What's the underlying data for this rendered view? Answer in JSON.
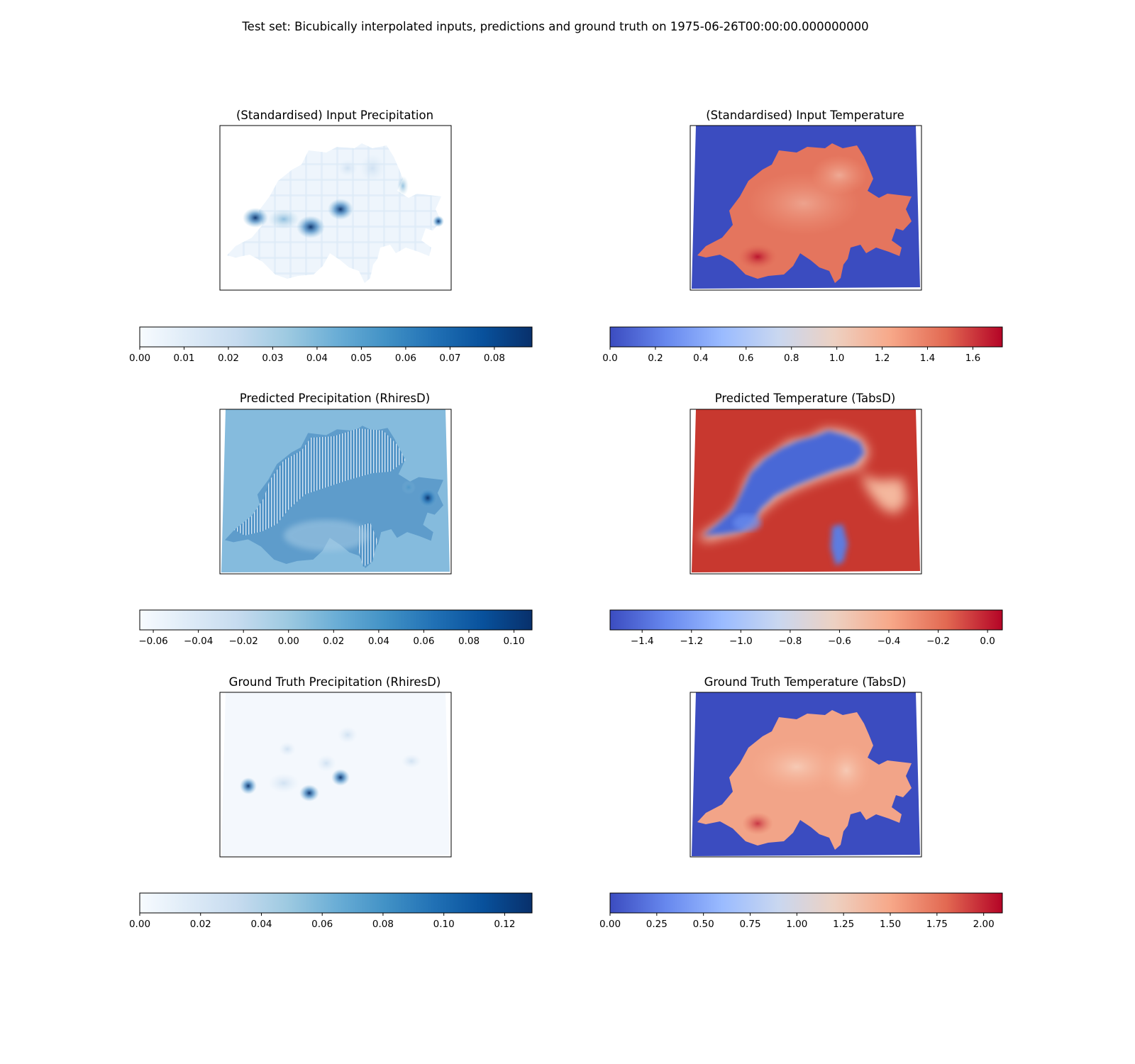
{
  "figure": {
    "suptitle": "Test set: Bicubically interpolated inputs, predictions and ground truth on 1975-06-26T00:00:00.000000000"
  },
  "colors": {
    "ocean_blue": "#3b4cc0",
    "precip_bg": "#f4f8fd",
    "Blues": [
      "#f7fbff",
      "#deebf7",
      "#c6dbef",
      "#9ecae1",
      "#6baed6",
      "#4292c6",
      "#2171b5",
      "#08519c",
      "#08306b"
    ],
    "coolwarm": [
      "#3b4cc0",
      "#6788ee",
      "#9abbff",
      "#c9d7f0",
      "#edd1c2",
      "#f7a889",
      "#e26952",
      "#b40426"
    ]
  },
  "chart_data": [
    {
      "type": "heatmap",
      "title": "(Standardised) Input Precipitation",
      "cmap": "Blues",
      "colorbar": {
        "vmin": 0.0,
        "vmax": 0.0885,
        "ticks": [
          0.0,
          0.01,
          0.02,
          0.03,
          0.04,
          0.05,
          0.06,
          0.07,
          0.08
        ],
        "tick_labels": [
          "0.00",
          "0.01",
          "0.02",
          "0.03",
          "0.04",
          "0.05",
          "0.06",
          "0.07",
          "0.08"
        ]
      }
    },
    {
      "type": "heatmap",
      "title": "(Standardised) Input Temperature",
      "cmap": "coolwarm",
      "colorbar": {
        "vmin": 0.0,
        "vmax": 1.73,
        "ticks": [
          0.0,
          0.2,
          0.4,
          0.6,
          0.8,
          1.0,
          1.2,
          1.4,
          1.6
        ],
        "tick_labels": [
          "0.0",
          "0.2",
          "0.4",
          "0.6",
          "0.8",
          "1.0",
          "1.2",
          "1.4",
          "1.6"
        ]
      }
    },
    {
      "type": "heatmap",
      "title": "Predicted Precipitation (RhiresD)",
      "cmap": "Blues",
      "colorbar": {
        "vmin": -0.066,
        "vmax": 0.108,
        "ticks": [
          -0.06,
          -0.04,
          -0.02,
          0.0,
          0.02,
          0.04,
          0.06,
          0.08,
          0.1
        ],
        "tick_labels": [
          "−0.06",
          "−0.04",
          "−0.02",
          "0.00",
          "0.02",
          "0.04",
          "0.06",
          "0.08",
          "0.10"
        ]
      }
    },
    {
      "type": "heatmap",
      "title": "Predicted Temperature (TabsD)",
      "cmap": "coolwarm",
      "colorbar": {
        "vmin": -1.53,
        "vmax": 0.06,
        "ticks": [
          -1.4,
          -1.2,
          -1.0,
          -0.8,
          -0.6,
          -0.4,
          -0.2,
          0.0
        ],
        "tick_labels": [
          "−1.4",
          "−1.2",
          "−1.0",
          "−0.8",
          "−0.6",
          "−0.4",
          "−0.2",
          "0.0"
        ]
      }
    },
    {
      "type": "heatmap",
      "title": "Ground Truth Precipitation (RhiresD)",
      "cmap": "Blues",
      "colorbar": {
        "vmin": 0.0,
        "vmax": 0.129,
        "ticks": [
          0.0,
          0.02,
          0.04,
          0.06,
          0.08,
          0.1,
          0.12
        ],
        "tick_labels": [
          "0.00",
          "0.02",
          "0.04",
          "0.06",
          "0.08",
          "0.10",
          "0.12"
        ]
      }
    },
    {
      "type": "heatmap",
      "title": "Ground Truth Temperature (TabsD)",
      "cmap": "coolwarm",
      "colorbar": {
        "vmin": 0.0,
        "vmax": 2.1,
        "ticks": [
          0.0,
          0.25,
          0.5,
          0.75,
          1.0,
          1.25,
          1.5,
          1.75,
          2.0
        ],
        "tick_labels": [
          "0.00",
          "0.25",
          "0.50",
          "0.75",
          "1.00",
          "1.25",
          "1.50",
          "1.75",
          "2.00"
        ]
      }
    }
  ]
}
